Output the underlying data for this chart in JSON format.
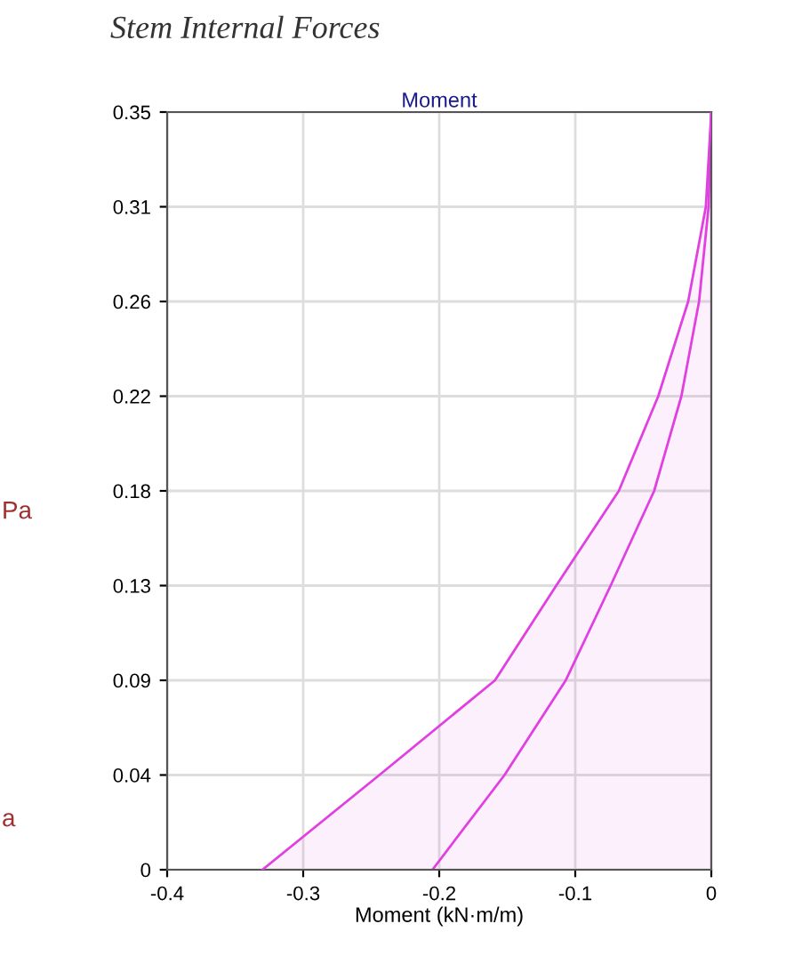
{
  "chart_data": {
    "type": "line",
    "title": "Stem Internal Forces",
    "subtitle": "Moment",
    "xlabel": "Moment (kN·m/m)",
    "annotations": [
      "Pa",
      "a"
    ],
    "series": [
      {
        "type": "area",
        "color": "#e040e0",
        "x": [
          -0.33,
          -0.244,
          -0.159,
          -0.114,
          -0.068,
          -0.039,
          -0.017,
          -0.004,
          0
        ],
        "values": [
          0,
          0.04375,
          0.0875,
          0.13125,
          0.175,
          0.21875,
          0.2625,
          0.30625,
          0.35
        ]
      },
      {
        "color": "#e040e0",
        "x": [
          -0.205,
          -0.152,
          -0.107,
          -0.074,
          -0.042,
          -0.022,
          -0.009,
          -0.002,
          0
        ],
        "values": [
          0,
          0.04375,
          0.0875,
          0.13125,
          0.175,
          0.21875,
          0.2625,
          0.30625,
          0.35
        ]
      }
    ],
    "xlim": [
      -0.4,
      0
    ],
    "xticks": [
      -0.4,
      -0.3,
      -0.2,
      -0.1,
      0
    ],
    "ylim": [
      0,
      0.35
    ],
    "yticks": [
      0,
      {
        "value": 0.04375,
        "label": "0.04"
      },
      {
        "value": 0.0875,
        "label": "0.09"
      },
      {
        "value": 0.13125,
        "label": "0.13"
      },
      {
        "value": 0.175,
        "label": "0.18"
      },
      {
        "value": 0.21875,
        "label": "0.22"
      },
      {
        "value": 0.2625,
        "label": "0.26"
      },
      {
        "value": 0.30625,
        "label": "0.31"
      },
      0.35
    ],
    "grid": true
  }
}
